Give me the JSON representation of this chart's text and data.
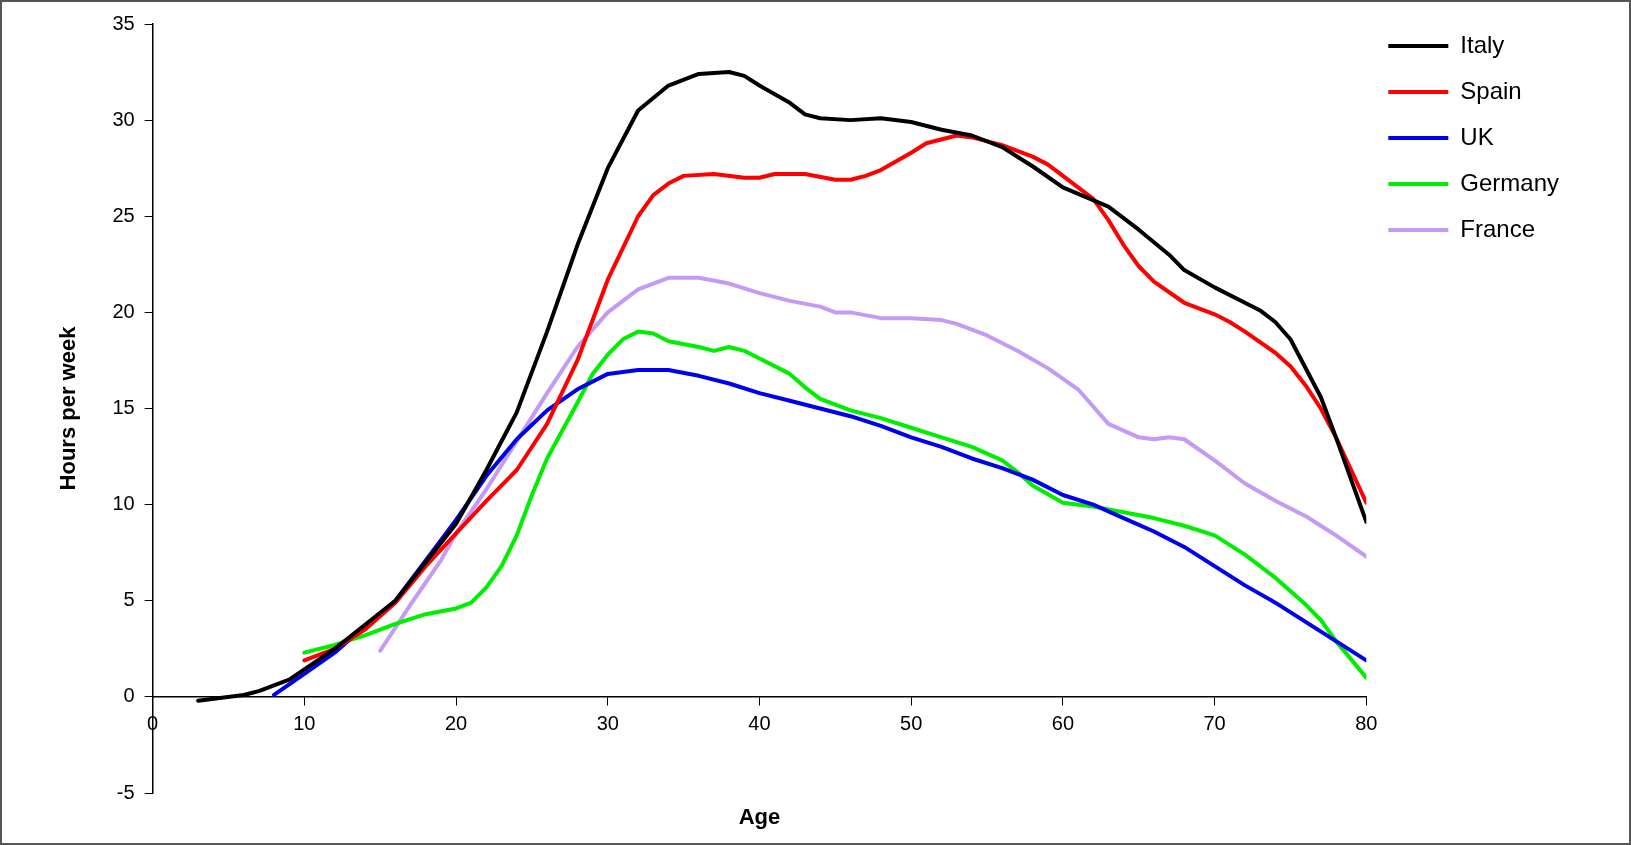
{
  "chart_data": {
    "type": "line",
    "xlabel": "Age",
    "ylabel": "Hours per week",
    "xlim": [
      0,
      80
    ],
    "xticks": [
      0,
      10,
      20,
      30,
      40,
      50,
      60,
      70,
      80
    ],
    "ylim": [
      -5,
      35
    ],
    "yticks": [
      -5,
      0,
      5,
      10,
      15,
      20,
      25,
      30,
      35
    ],
    "grid": false,
    "legend": "top right",
    "marker": "none",
    "line_style": "solid",
    "series": [
      {
        "name": "Italy",
        "color": "#000000",
        "x": [
          3,
          6,
          7,
          9,
          12,
          16,
          20,
          22,
          24,
          26,
          28,
          30,
          32,
          34,
          36,
          38,
          39,
          40,
          42,
          43,
          44,
          46,
          48,
          50,
          52,
          54,
          56,
          58,
          60,
          63,
          65,
          67,
          68,
          70,
          72,
          73,
          74,
          75,
          77,
          78,
          80
        ],
        "values": [
          -0.2,
          0.1,
          0.3,
          0.9,
          2.5,
          5,
          9,
          11.8,
          14.8,
          19,
          23.5,
          27.5,
          30.5,
          31.8,
          32.4,
          32.5,
          32.3,
          31.8,
          30.9,
          30.3,
          30.1,
          30,
          30.1,
          29.9,
          29.5,
          29.2,
          28.6,
          27.6,
          26.5,
          25.5,
          24.3,
          23,
          22.2,
          21.3,
          20.5,
          20.1,
          19.5,
          18.6,
          15.6,
          13.5,
          9.1
        ]
      },
      {
        "name": "Spain",
        "color": "#ff0000",
        "x": [
          10,
          12,
          14,
          16,
          18,
          20,
          22,
          24,
          26,
          28,
          30,
          32,
          33,
          34,
          35,
          37,
          39,
          40,
          41,
          43,
          45,
          46,
          47,
          48,
          50,
          51,
          53,
          54,
          56,
          58,
          59,
          60,
          62,
          63,
          64,
          65,
          66,
          68,
          70,
          71,
          72,
          74,
          75,
          76,
          77,
          78,
          80
        ],
        "values": [
          1.9,
          2.5,
          3.5,
          4.9,
          6.8,
          8.5,
          10.2,
          11.8,
          14.2,
          17.5,
          21.7,
          25,
          26.1,
          26.7,
          27.1,
          27.2,
          27,
          27,
          27.2,
          27.2,
          26.9,
          26.9,
          27.1,
          27.4,
          28.3,
          28.8,
          29.2,
          29.1,
          28.7,
          28.1,
          27.7,
          27.1,
          25.9,
          24.8,
          23.5,
          22.4,
          21.6,
          20.5,
          19.9,
          19.5,
          19,
          17.9,
          17.2,
          16.2,
          15,
          13.5,
          10.1
        ]
      },
      {
        "name": "UK",
        "color": "#0000ee",
        "x": [
          8,
          10,
          12,
          14,
          16,
          18,
          20,
          22,
          24,
          26,
          28,
          30,
          32,
          34,
          36,
          38,
          40,
          42,
          44,
          46,
          48,
          50,
          52,
          54,
          56,
          58,
          60,
          62,
          64,
          66,
          68,
          70,
          72,
          74,
          76,
          78,
          80
        ],
        "values": [
          0.1,
          1.2,
          2.3,
          3.7,
          5,
          7.1,
          9.2,
          11.5,
          13.4,
          14.9,
          16,
          16.8,
          17,
          17,
          16.7,
          16.3,
          15.8,
          15.4,
          15,
          14.6,
          14.1,
          13.5,
          13,
          12.4,
          11.9,
          11.3,
          10.5,
          10,
          9.3,
          8.6,
          7.8,
          6.8,
          5.8,
          4.9,
          3.9,
          2.9,
          1.9
        ]
      },
      {
        "name": "Germany",
        "color": "#00ee00",
        "x": [
          10,
          12,
          14,
          16,
          18,
          20,
          21,
          22,
          23,
          24,
          25,
          26,
          28,
          29,
          30,
          31,
          32,
          33,
          34,
          36,
          37,
          38,
          39,
          40,
          42,
          43,
          44,
          46,
          48,
          50,
          52,
          54,
          56,
          57,
          58,
          60,
          62,
          64,
          66,
          68,
          70,
          72,
          74,
          76,
          77,
          78,
          80
        ],
        "values": [
          2.3,
          2.7,
          3.2,
          3.8,
          4.3,
          4.6,
          4.9,
          5.7,
          6.8,
          8.4,
          10.5,
          12.4,
          15.3,
          16.8,
          17.8,
          18.6,
          19,
          18.9,
          18.5,
          18.2,
          18,
          18.2,
          18,
          17.6,
          16.8,
          16.1,
          15.5,
          14.9,
          14.5,
          14,
          13.5,
          13,
          12.3,
          11.7,
          11,
          10.1,
          9.9,
          9.6,
          9.3,
          8.9,
          8.4,
          7.4,
          6.2,
          4.8,
          4,
          2.9,
          1
        ]
      },
      {
        "name": "France",
        "color": "#c39bf5",
        "x": [
          15,
          17,
          19,
          20,
          22,
          24,
          26,
          28,
          30,
          32,
          34,
          36,
          38,
          40,
          42,
          44,
          45,
          46,
          48,
          50,
          52,
          53,
          55,
          57,
          59,
          61,
          63,
          65,
          66,
          67,
          68,
          70,
          72,
          74,
          76,
          77,
          78,
          80
        ],
        "values": [
          2.4,
          4.8,
          7.1,
          8.5,
          10.8,
          13.3,
          15.8,
          18.2,
          20,
          21.2,
          21.8,
          21.8,
          21.5,
          21,
          20.6,
          20.3,
          20,
          20,
          19.7,
          19.7,
          19.6,
          19.4,
          18.8,
          18,
          17.1,
          16,
          14.2,
          13.5,
          13.4,
          13.5,
          13.4,
          12.3,
          11.1,
          10.2,
          9.4,
          8.9,
          8.4,
          7.3
        ]
      }
    ]
  }
}
